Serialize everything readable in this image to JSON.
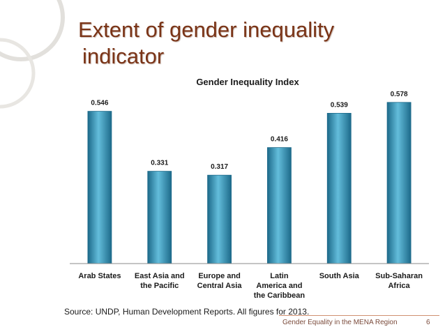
{
  "slide": {
    "title_line1": "Extent of gender inequality",
    "title_line2": "indicator",
    "source": "Source: UNDP, Human Development Reports. All figures for 2013.",
    "footer": "Gender Equality in the MENA Region",
    "page_number": "6"
  },
  "chart_data": {
    "type": "bar",
    "title": "Gender Inequality Index",
    "xlabel": "",
    "ylabel": "",
    "categories": [
      [
        "Arab States"
      ],
      [
        "East Asia and",
        "the Pacific"
      ],
      [
        "Europe and",
        "Central Asia"
      ],
      [
        "Latin",
        "America and",
        "the Caribbean"
      ],
      [
        "South Asia"
      ],
      [
        "Sub-Saharan",
        "Africa"
      ]
    ],
    "values": [
      0.546,
      0.331,
      0.317,
      0.416,
      0.539,
      0.578
    ],
    "data_labels": [
      "0.546",
      "0.331",
      "0.317",
      "0.416",
      "0.539",
      "0.578"
    ],
    "ylim": [
      0,
      0.6
    ],
    "grid": false,
    "legend": "none",
    "colors": {
      "bar_edge": "#1d6a8a",
      "bar_mid": "#3aa4c8",
      "bar_light": "#63bddb",
      "axis": "#888888",
      "title_text": "#7a3417"
    }
  }
}
